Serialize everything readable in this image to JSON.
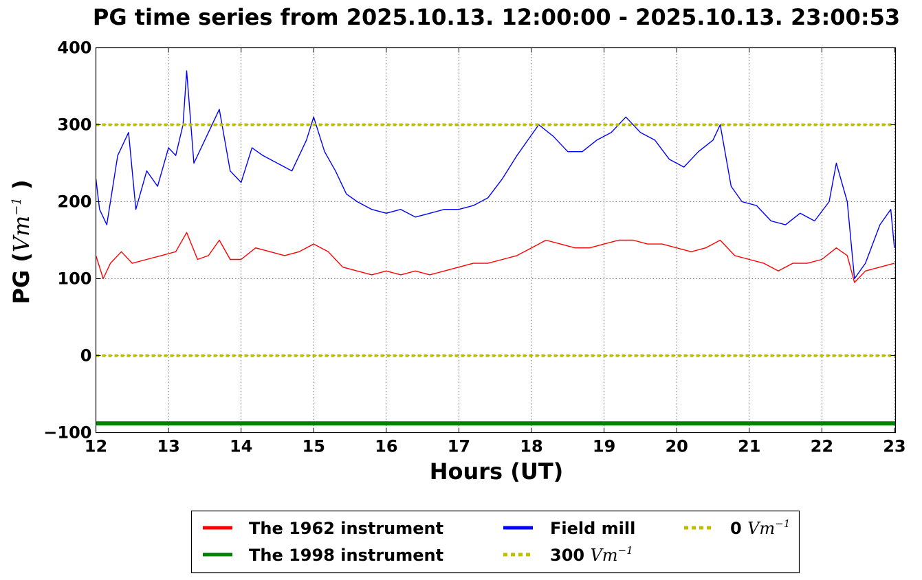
{
  "chart_data": {
    "type": "line",
    "title": "PG time series from 2025.10.13. 12:00:00 - 2025.10.13. 23:00:53",
    "xlabel": "Hours (UT)",
    "ylabel": {
      "prefix": "PG (",
      "unit": "Vm",
      "exp": "−1",
      "suffix": " )"
    },
    "xlim": [
      12,
      23.015
    ],
    "ylim": [
      -100,
      400
    ],
    "xticks": [
      12,
      13,
      14,
      15,
      16,
      17,
      18,
      19,
      20,
      21,
      22,
      23
    ],
    "yticks": [
      -100,
      0,
      100,
      200,
      300,
      400
    ],
    "ytick_labels": [
      "−100",
      "0",
      "100",
      "200",
      "300",
      "400"
    ],
    "grid": true,
    "legend_position": "below",
    "series": [
      {
        "name": "The 1962 instrument",
        "color": "#ff0000",
        "x": [
          12.0,
          12.1,
          12.2,
          12.35,
          12.5,
          12.7,
          12.9,
          13.1,
          13.25,
          13.4,
          13.55,
          13.7,
          13.85,
          14.0,
          14.2,
          14.4,
          14.6,
          14.8,
          15.0,
          15.2,
          15.4,
          15.6,
          15.8,
          16.0,
          16.2,
          16.4,
          16.6,
          16.8,
          17.0,
          17.2,
          17.4,
          17.6,
          17.8,
          18.0,
          18.2,
          18.4,
          18.6,
          18.8,
          19.0,
          19.2,
          19.4,
          19.6,
          19.8,
          20.0,
          20.2,
          20.4,
          20.6,
          20.8,
          21.0,
          21.2,
          21.4,
          21.6,
          21.8,
          22.0,
          22.2,
          22.35,
          22.45,
          22.6,
          22.8,
          23.0
        ],
        "y": [
          130,
          100,
          120,
          135,
          120,
          125,
          130,
          135,
          160,
          125,
          130,
          150,
          125,
          125,
          140,
          135,
          130,
          135,
          145,
          135,
          115,
          110,
          105,
          110,
          105,
          110,
          105,
          110,
          115,
          120,
          120,
          125,
          130,
          140,
          150,
          145,
          140,
          140,
          145,
          150,
          150,
          145,
          145,
          140,
          135,
          140,
          150,
          130,
          125,
          120,
          110,
          120,
          120,
          125,
          140,
          130,
          95,
          110,
          115,
          120
        ]
      },
      {
        "name": "The 1998 instrument",
        "color": "#008000",
        "x": [
          12.0,
          23.015
        ],
        "y": [
          -88,
          -88
        ]
      },
      {
        "name": "Field mill",
        "color": "#0000ff",
        "x": [
          12.0,
          12.05,
          12.15,
          12.3,
          12.45,
          12.55,
          12.7,
          12.85,
          13.0,
          13.1,
          13.2,
          13.25,
          13.35,
          13.5,
          13.7,
          13.85,
          14.0,
          14.15,
          14.3,
          14.5,
          14.7,
          14.9,
          15.0,
          15.15,
          15.3,
          15.45,
          15.6,
          15.8,
          16.0,
          16.2,
          16.4,
          16.6,
          16.8,
          17.0,
          17.2,
          17.4,
          17.6,
          17.8,
          17.95,
          18.1,
          18.3,
          18.5,
          18.7,
          18.9,
          19.1,
          19.3,
          19.5,
          19.7,
          19.9,
          20.1,
          20.3,
          20.5,
          20.6,
          20.75,
          20.9,
          21.1,
          21.3,
          21.5,
          21.7,
          21.9,
          22.1,
          22.2,
          22.35,
          22.45,
          22.6,
          22.8,
          22.95,
          23.0
        ],
        "y": [
          230,
          190,
          170,
          260,
          290,
          190,
          240,
          220,
          270,
          260,
          300,
          370,
          250,
          280,
          320,
          240,
          225,
          270,
          260,
          250,
          240,
          280,
          310,
          265,
          240,
          210,
          200,
          190,
          185,
          190,
          180,
          185,
          190,
          190,
          195,
          205,
          230,
          260,
          280,
          300,
          285,
          265,
          265,
          280,
          290,
          310,
          290,
          280,
          255,
          245,
          265,
          280,
          300,
          220,
          200,
          195,
          175,
          170,
          185,
          175,
          200,
          250,
          200,
          100,
          120,
          170,
          190,
          140
        ]
      },
      {
        "name": "300 Vm⁻¹",
        "color": "#bfbf00",
        "x": [
          12.0,
          23.015
        ],
        "y": [
          300,
          300
        ]
      },
      {
        "name": "0 Vm⁻¹",
        "color": "#bfbf00",
        "x": [
          12.0,
          23.015
        ],
        "y": [
          0,
          0
        ]
      }
    ],
    "legend": [
      {
        "label": "The 1962 instrument",
        "color": "#ff0000",
        "style": "solid"
      },
      {
        "label": "The 1998 instrument",
        "color": "#008000",
        "style": "solid"
      },
      {
        "label": "Field mill",
        "color": "#0000ff",
        "style": "solid"
      },
      {
        "label_prefix": "300 ",
        "unit": "Vm",
        "exp": "−1",
        "color": "#bfbf00",
        "style": "dotted"
      },
      {
        "label_prefix": "0 ",
        "unit": "Vm",
        "exp": "−1",
        "color": "#bfbf00",
        "style": "dotted"
      }
    ]
  }
}
